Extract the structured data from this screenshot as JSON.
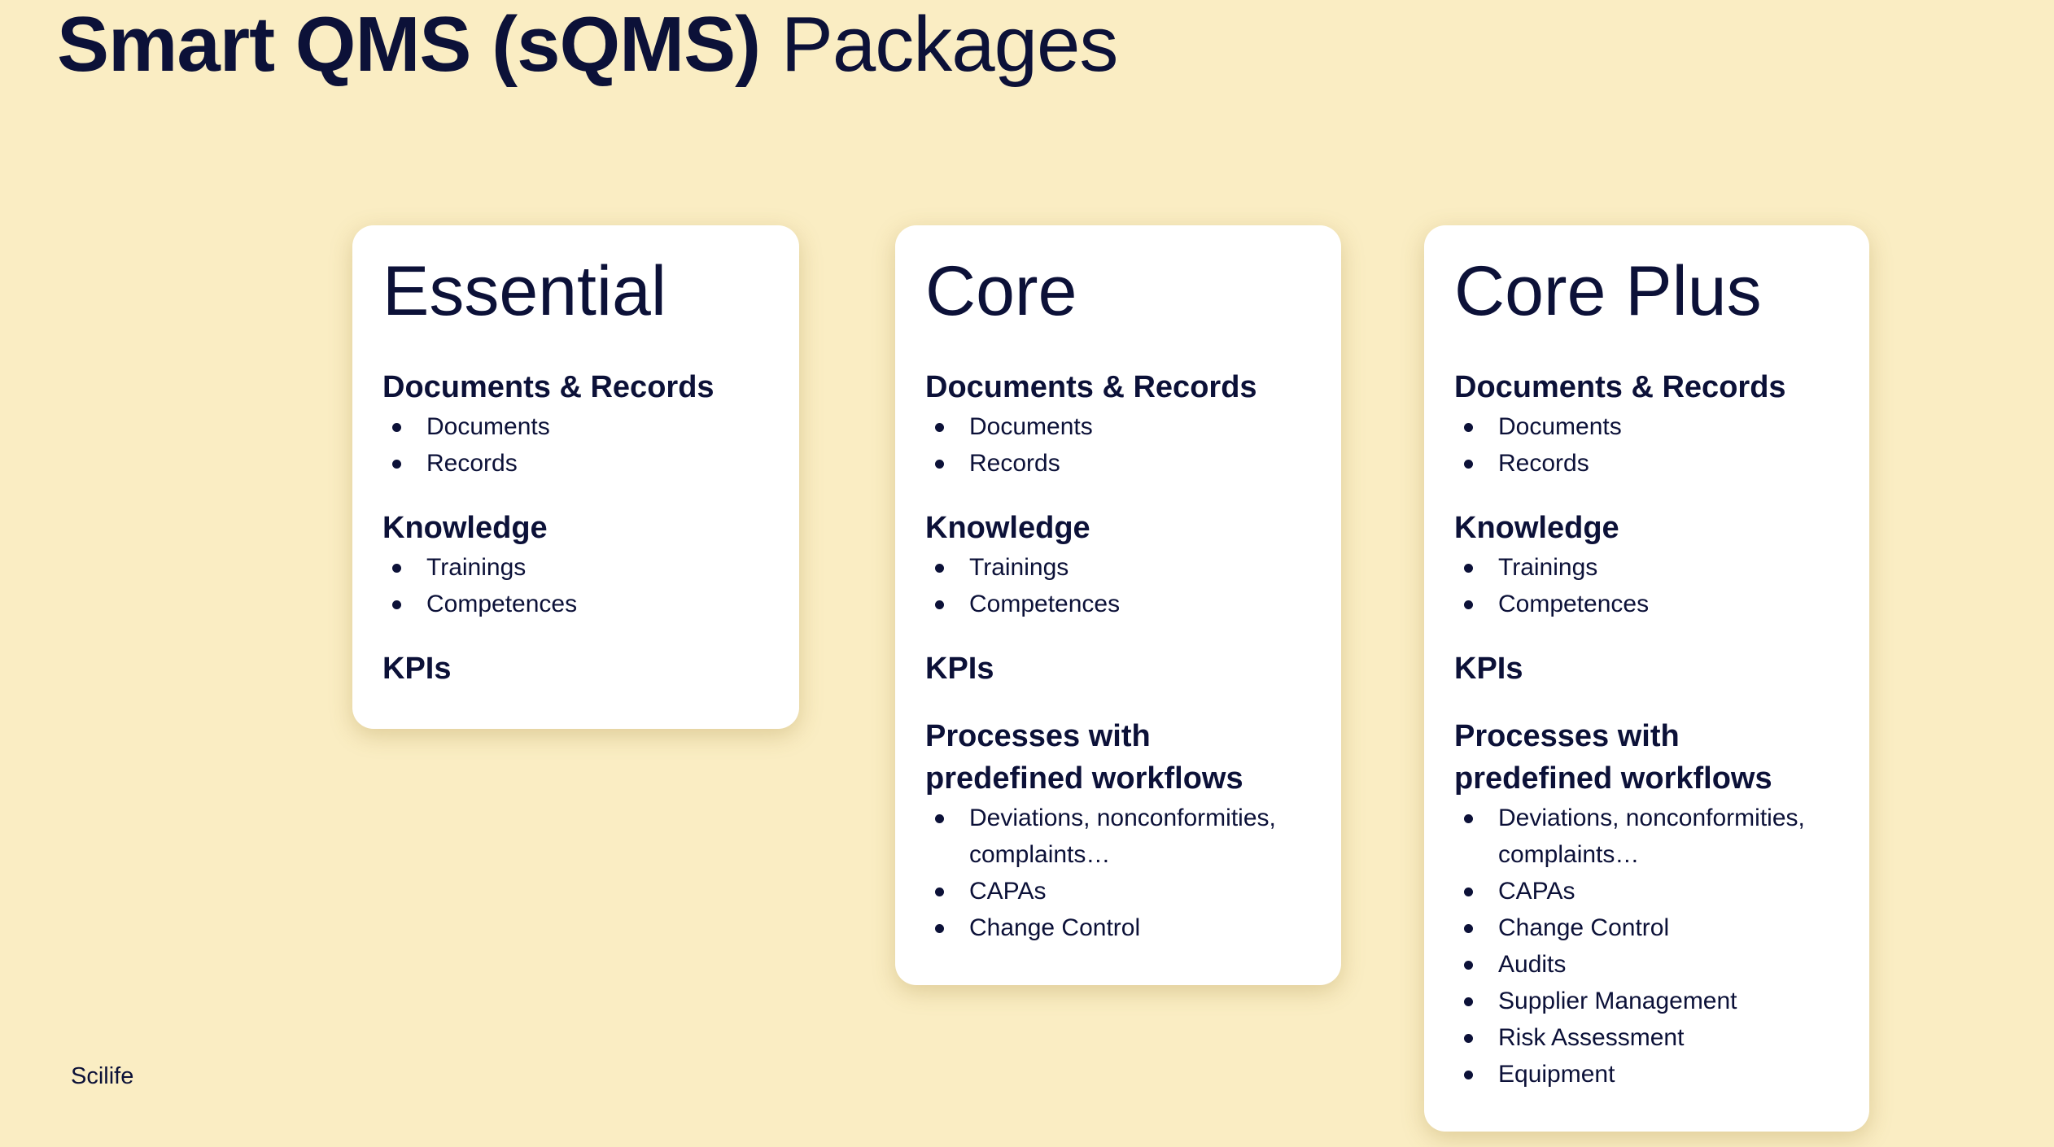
{
  "header": {
    "title_bold": "Smart QMS (sQMS)",
    "title_light": "Packages"
  },
  "colors": {
    "background": "#faedc3",
    "text": "#0c1138",
    "card": "#ffffff"
  },
  "packages": [
    {
      "name": "Essential",
      "sections": [
        {
          "heading": "Documents & Records",
          "items": [
            "Documents",
            "Records"
          ]
        },
        {
          "heading": "Knowledge",
          "items": [
            "Trainings",
            "Competences"
          ]
        },
        {
          "heading": "KPIs",
          "items": []
        }
      ]
    },
    {
      "name": "Core",
      "sections": [
        {
          "heading": "Documents & Records",
          "items": [
            "Documents",
            "Records"
          ]
        },
        {
          "heading": "Knowledge",
          "items": [
            "Trainings",
            "Competences"
          ]
        },
        {
          "heading": "KPIs",
          "items": []
        },
        {
          "heading": "Processes with predefined workflows",
          "items": [
            "Deviations, nonconformities, complaints…",
            "CAPAs",
            "Change Control"
          ]
        }
      ]
    },
    {
      "name": "Core Plus",
      "sections": [
        {
          "heading": "Documents & Records",
          "items": [
            "Documents",
            "Records"
          ]
        },
        {
          "heading": "Knowledge",
          "items": [
            "Trainings",
            "Competences"
          ]
        },
        {
          "heading": "KPIs",
          "items": []
        },
        {
          "heading": "Processes with predefined workflows",
          "items": [
            "Deviations, nonconformities, complaints…",
            "CAPAs",
            "Change Control",
            "Audits",
            "Supplier Management",
            "Risk Assessment",
            "Equipment"
          ]
        }
      ]
    }
  ],
  "footer": {
    "brand": "Scilife"
  }
}
